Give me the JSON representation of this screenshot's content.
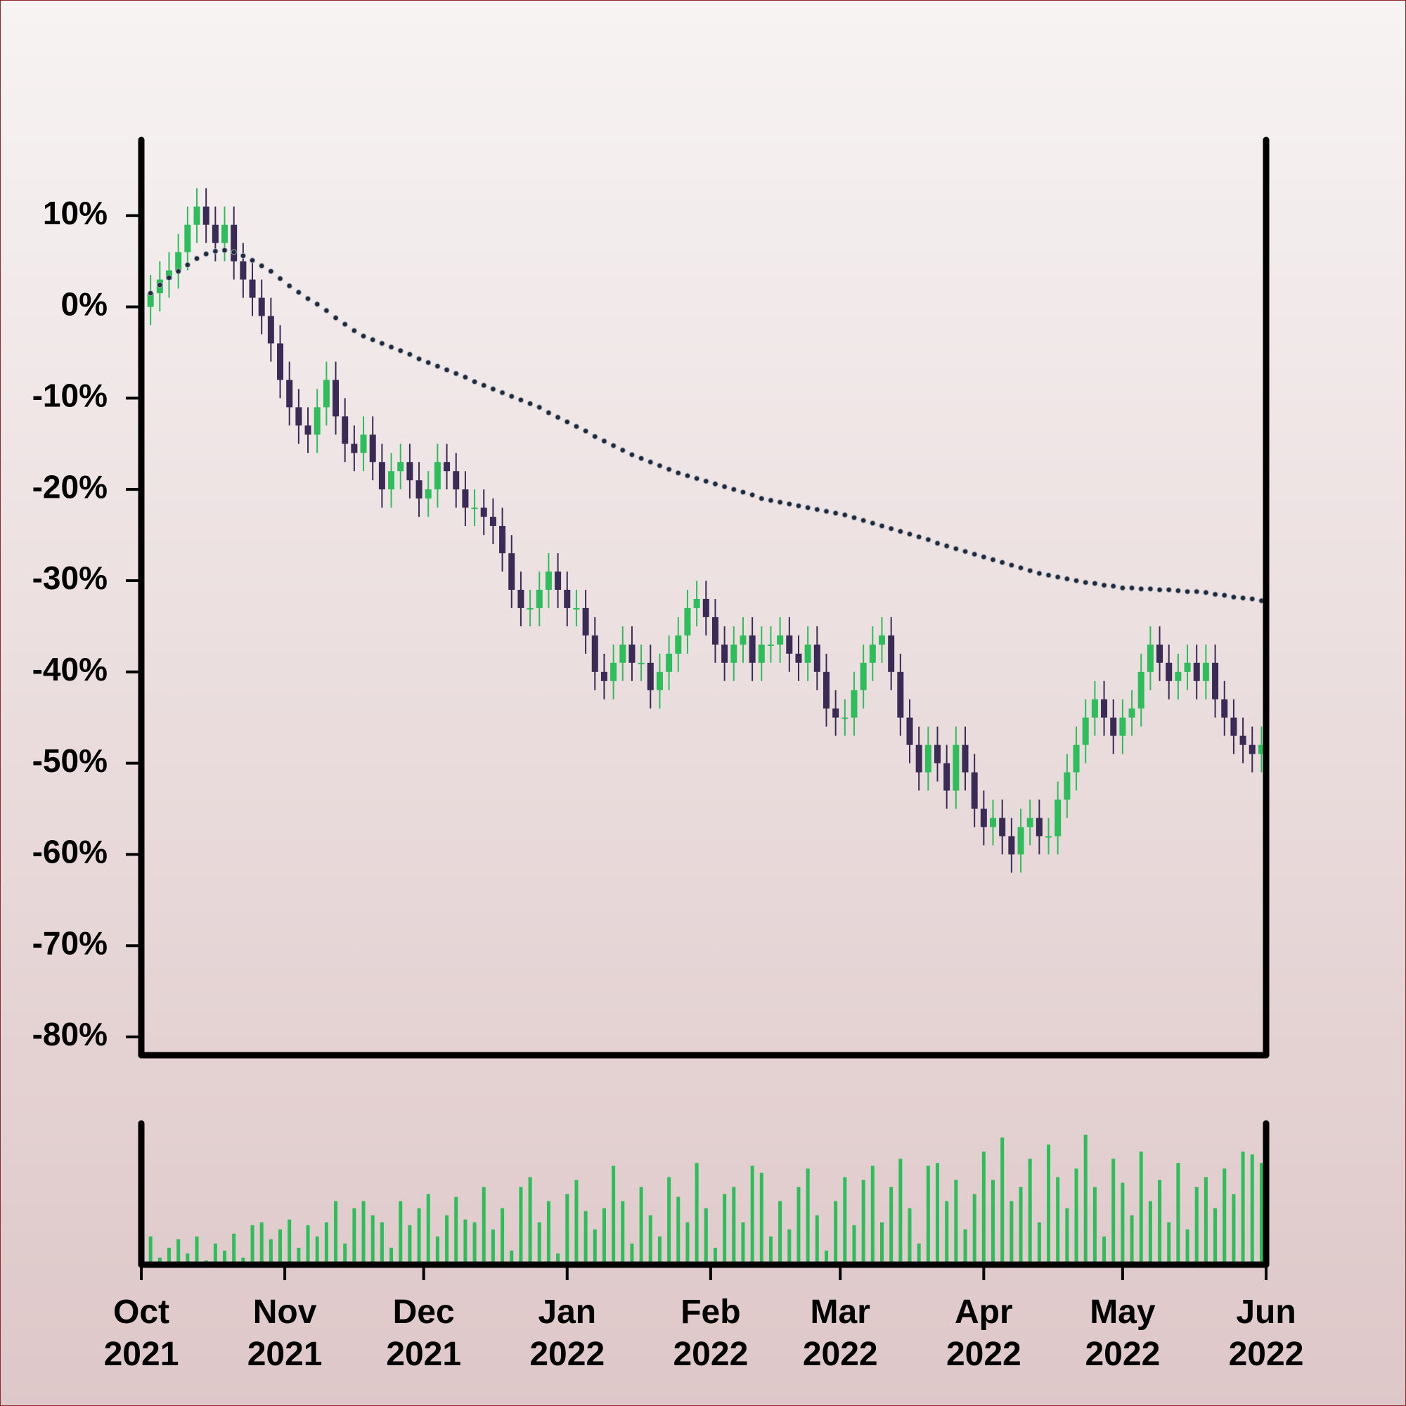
{
  "chart_data": [
    {
      "type": "candlestick",
      "x": [
        0,
        2,
        4,
        6,
        8,
        10,
        12,
        14,
        16,
        18,
        20,
        22,
        24,
        26,
        28,
        30,
        32,
        34,
        36,
        38,
        40,
        42,
        44,
        46,
        48,
        50,
        52,
        54,
        56,
        58,
        60,
        62,
        64,
        66,
        68,
        70,
        72,
        74,
        76,
        78,
        80,
        82,
        84,
        86,
        88,
        90,
        92,
        94,
        96,
        98,
        100,
        102,
        104,
        106,
        108,
        110,
        112,
        114,
        116,
        118,
        120,
        122,
        124,
        126,
        128,
        130,
        132,
        134,
        136,
        138,
        140,
        142,
        144,
        146,
        148,
        150,
        152,
        154,
        156,
        158,
        160,
        162,
        164,
        166,
        168,
        170,
        172,
        174,
        176,
        178,
        180,
        182,
        184,
        186,
        188,
        190,
        192,
        194,
        196,
        198,
        200,
        202,
        204,
        206,
        208,
        210,
        212,
        214,
        216,
        218,
        220,
        222,
        224,
        226,
        228,
        230,
        232,
        234,
        236,
        238,
        240,
        242
      ],
      "open": [
        -1,
        0,
        1.5,
        3,
        4,
        6,
        9,
        11,
        9,
        7,
        9,
        5,
        3,
        1,
        -1,
        -4,
        -8,
        -11,
        -13,
        -14,
        -11,
        -8,
        -12,
        -15,
        -16,
        -14,
        -17,
        -20,
        -18,
        -17,
        -19,
        -21,
        -20,
        -17,
        -18,
        -20,
        -22,
        -22,
        -23,
        -24,
        -27,
        -31,
        -33,
        -33,
        -31,
        -29,
        -31,
        -33,
        -33,
        -36,
        -40,
        -41,
        -39,
        -37,
        -39,
        -39,
        -42,
        -40,
        -38,
        -36,
        -33,
        -32,
        -34,
        -37,
        -39,
        -37,
        -36,
        -39,
        -37,
        -37,
        -36,
        -38,
        -39,
        -37,
        -40,
        -44,
        -45,
        -45,
        -42,
        -39,
        -37,
        -36,
        -40,
        -45,
        -48,
        -51,
        -48,
        -50,
        -53,
        -48,
        -51,
        -55,
        -57,
        -56,
        -58,
        -60,
        -57,
        -56,
        -58,
        -58,
        -54,
        -51,
        -48,
        -45,
        -43,
        -45,
        -47,
        -45,
        -44,
        -40,
        -37,
        -39,
        -41,
        -40,
        -39,
        -41,
        -39,
        -43,
        -45,
        -47,
        -48,
        -49
      ],
      "high": [
        2,
        3.5,
        5,
        6,
        8,
        11,
        13,
        13,
        11,
        11,
        11,
        7,
        5,
        3,
        1,
        -2,
        -6,
        -9,
        -11,
        -9,
        -6,
        -6,
        -10,
        -13,
        -12,
        -12,
        -15,
        -16,
        -15,
        -15,
        -17,
        -18,
        -15,
        -15,
        -16,
        -18,
        -20,
        -20,
        -21,
        -22,
        -25,
        -29,
        -31,
        -29,
        -27,
        -27,
        -29,
        -31,
        -31,
        -34,
        -38,
        -37,
        -35,
        -35,
        -37,
        -37,
        -38,
        -36,
        -34,
        -31,
        -30,
        -30,
        -32,
        -35,
        -35,
        -34,
        -34,
        -35,
        -35,
        -34,
        -34,
        -36,
        -35,
        -35,
        -38,
        -42,
        -43,
        -40,
        -37,
        -35,
        -34,
        -34,
        -38,
        -43,
        -46,
        -46,
        -46,
        -48,
        -46,
        -46,
        -49,
        -53,
        -54,
        -54,
        -56,
        -55,
        -54,
        -54,
        -56,
        -52,
        -49,
        -46,
        -43,
        -41,
        -41,
        -43,
        -43,
        -42,
        -38,
        -35,
        -35,
        -37,
        -38,
        -37,
        -37,
        -37,
        -37,
        -41,
        -43,
        -45,
        -46,
        -46
      ],
      "low": [
        -3,
        -2,
        -0.5,
        1,
        2,
        4,
        7,
        7,
        5,
        5,
        3,
        1,
        -1,
        -3,
        -6,
        -10,
        -13,
        -15,
        -16,
        -16,
        -13,
        -14,
        -17,
        -18,
        -18,
        -19,
        -22,
        -22,
        -20,
        -21,
        -23,
        -23,
        -22,
        -20,
        -22,
        -24,
        -24,
        -25,
        -26,
        -29,
        -33,
        -35,
        -35,
        -35,
        -33,
        -33,
        -35,
        -35,
        -38,
        -42,
        -43,
        -43,
        -41,
        -41,
        -41,
        -44,
        -44,
        -42,
        -40,
        -38,
        -35,
        -36,
        -39,
        -41,
        -41,
        -39,
        -41,
        -41,
        -39,
        -39,
        -40,
        -41,
        -41,
        -42,
        -46,
        -47,
        -47,
        -47,
        -44,
        -41,
        -39,
        -42,
        -47,
        -50,
        -53,
        -53,
        -52,
        -55,
        -55,
        -53,
        -57,
        -59,
        -59,
        -60,
        -62,
        -62,
        -59,
        -60,
        -60,
        -60,
        -56,
        -53,
        -50,
        -47,
        -47,
        -49,
        -49,
        -47,
        -46,
        -42,
        -41,
        -43,
        -43,
        -42,
        -43,
        -43,
        -45,
        -47,
        -49,
        -50,
        -51,
        -51
      ],
      "close": [
        0,
        1.5,
        3,
        4,
        6,
        9,
        11,
        9,
        7,
        9,
        5,
        3,
        1,
        -1,
        -4,
        -8,
        -11,
        -13,
        -14,
        -11,
        -8,
        -12,
        -15,
        -16,
        -14,
        -17,
        -20,
        -18,
        -17,
        -19,
        -21,
        -20,
        -17,
        -18,
        -20,
        -22,
        -22,
        -23,
        -24,
        -27,
        -31,
        -33,
        -33,
        -31,
        -29,
        -31,
        -33,
        -33,
        -36,
        -40,
        -41,
        -39,
        -37,
        -39,
        -39,
        -42,
        -40,
        -38,
        -36,
        -33,
        -32,
        -34,
        -37,
        -39,
        -37,
        -36,
        -39,
        -37,
        -37,
        -36,
        -38,
        -39,
        -37,
        -40,
        -44,
        -45,
        -45,
        -42,
        -39,
        -37,
        -36,
        -40,
        -45,
        -48,
        -51,
        -48,
        -50,
        -53,
        -48,
        -51,
        -55,
        -57,
        -56,
        -58,
        -60,
        -57,
        -56,
        -58,
        -58,
        -54,
        -51,
        -48,
        -45,
        -43,
        -45,
        -47,
        -45,
        -44,
        -40,
        -37,
        -39,
        -41,
        -40,
        -39,
        -41,
        -39,
        -43,
        -45,
        -47,
        -48,
        -49,
        -48
      ],
      "up_color": "#2dbd5a",
      "down_color": "#3a2a56",
      "moving_average": {
        "color": "#1f2a3a",
        "values": [
          0.8,
          1.5,
          2.4,
          3.2,
          3.9,
          4.6,
          5.3,
          5.8,
          6.1,
          6.2,
          6.0,
          5.6,
          5.1,
          4.5,
          3.9,
          3.1,
          2.3,
          1.6,
          0.9,
          0.3,
          -0.4,
          -1.2,
          -1.9,
          -2.6,
          -3.2,
          -3.6,
          -4.0,
          -4.4,
          -4.8,
          -5.2,
          -5.7,
          -6.1,
          -6.5,
          -6.9,
          -7.3,
          -7.7,
          -8.2,
          -8.6,
          -9.0,
          -9.4,
          -9.8,
          -10.2,
          -10.6,
          -11.0,
          -11.6,
          -12.1,
          -12.6,
          -13.1,
          -13.6,
          -14.2,
          -14.7,
          -15.2,
          -15.7,
          -16.2,
          -16.6,
          -17.0,
          -17.4,
          -17.8,
          -18.2,
          -18.5,
          -18.8,
          -19.1,
          -19.4,
          -19.7,
          -20.0,
          -20.3,
          -20.6,
          -21.0,
          -21.2,
          -21.4,
          -21.6,
          -21.8,
          -22.0,
          -22.2,
          -22.4,
          -22.6,
          -22.8,
          -23.1,
          -23.4,
          -23.7,
          -24.0,
          -24.3,
          -24.6,
          -24.9,
          -25.2,
          -25.5,
          -25.9,
          -26.2,
          -26.5,
          -26.8,
          -27.1,
          -27.4,
          -27.7,
          -28.0,
          -28.3,
          -28.6,
          -28.9,
          -29.2,
          -29.4,
          -29.6,
          -29.8,
          -30.0,
          -30.2,
          -30.3,
          -30.5,
          -30.6,
          -30.8,
          -30.8,
          -30.9,
          -30.9,
          -31.0,
          -31.0,
          -31.1,
          -31.2,
          -31.2,
          -31.3,
          -31.5,
          -31.6,
          -31.8,
          -31.9,
          -32.0,
          -32.2
        ]
      },
      "xlim": [
        0,
        243
      ],
      "ylim": [
        -82,
        18.3
      ],
      "yticks": [
        {
          "value": 10,
          "label": "10%"
        },
        {
          "value": 0,
          "label": "0%"
        },
        {
          "value": -10,
          "label": "-10%"
        },
        {
          "value": -20,
          "label": "-20%"
        },
        {
          "value": -30,
          "label": "-30%"
        },
        {
          "value": -40,
          "label": "-40%"
        },
        {
          "value": -50,
          "label": "-50%"
        },
        {
          "value": -60,
          "label": "-60%"
        },
        {
          "value": -70,
          "label": "-70%"
        },
        {
          "value": -80,
          "label": "-80%"
        }
      ]
    },
    {
      "type": "bar",
      "color": "#2dbd5a",
      "x": [
        0,
        2,
        4,
        6,
        8,
        10,
        12,
        14,
        16,
        18,
        20,
        22,
        24,
        26,
        28,
        30,
        32,
        34,
        36,
        38,
        40,
        42,
        44,
        46,
        48,
        50,
        52,
        54,
        56,
        58,
        60,
        62,
        64,
        66,
        68,
        70,
        72,
        74,
        76,
        78,
        80,
        82,
        84,
        86,
        88,
        90,
        92,
        94,
        96,
        98,
        100,
        102,
        104,
        106,
        108,
        110,
        112,
        114,
        116,
        118,
        120,
        122,
        124,
        126,
        128,
        130,
        132,
        134,
        136,
        138,
        140,
        142,
        144,
        146,
        148,
        150,
        152,
        154,
        156,
        158,
        160,
        162,
        164,
        166,
        168,
        170,
        172,
        174,
        176,
        178,
        180,
        182,
        184,
        186,
        188,
        190,
        192,
        194,
        196,
        198,
        200,
        202,
        204,
        206,
        208,
        210,
        212,
        214,
        216,
        218,
        220,
        222,
        224,
        226,
        228,
        230,
        232,
        234,
        236,
        238,
        240,
        242
      ],
      "values": [
        25,
        20,
        5,
        12,
        18,
        8,
        20,
        3,
        15,
        10,
        22,
        5,
        28,
        30,
        18,
        25,
        32,
        12,
        28,
        20,
        30,
        45,
        15,
        40,
        45,
        35,
        30,
        12,
        45,
        28,
        40,
        50,
        20,
        35,
        48,
        32,
        30,
        55,
        25,
        40,
        10,
        55,
        62,
        30,
        45,
        8,
        50,
        60,
        38,
        25,
        40,
        70,
        45,
        15,
        55,
        35,
        20,
        62,
        48,
        30,
        72,
        40,
        12,
        50,
        55,
        30,
        70,
        65,
        20,
        45,
        25,
        55,
        68,
        35,
        10,
        45,
        62,
        28,
        60,
        70,
        30,
        55,
        75,
        40,
        15,
        70,
        72,
        45,
        60,
        25,
        50,
        80,
        60,
        90,
        45,
        55,
        75,
        30,
        85,
        62,
        40,
        68,
        92,
        55,
        20,
        75,
        58,
        35,
        80,
        45,
        60,
        30,
        72,
        25,
        55,
        62,
        40,
        68,
        50,
        80,
        78,
        72
      ],
      "xlim": [
        0,
        243
      ],
      "ylim": [
        0,
        100
      ],
      "xticks": [
        {
          "value": 0,
          "label": "Oct 2021"
        },
        {
          "value": 31,
          "label": "Nov 2021"
        },
        {
          "value": 61,
          "label": "Dec 2021"
        },
        {
          "value": 92,
          "label": "Jan 2022"
        },
        {
          "value": 123,
          "label": "Feb 2022"
        },
        {
          "value": 151,
          "label": "Mar 2022"
        },
        {
          "value": 182,
          "label": "Apr 2022"
        },
        {
          "value": 212,
          "label": "May 2022"
        },
        {
          "value": 243,
          "label": "Jun 2022"
        }
      ]
    }
  ]
}
